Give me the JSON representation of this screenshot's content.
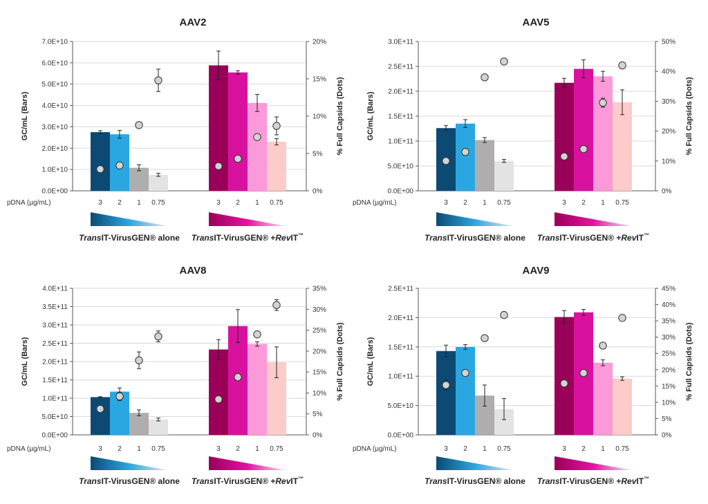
{
  "colors": {
    "bars": [
      "#0c4a74",
      "#2aa7e1",
      "#b0adae",
      "#e3e3e3",
      "#9a0058",
      "#d8129e",
      "#fc99d8",
      "#fdcbc9"
    ],
    "dot_fill": "#d3d3d3",
    "dot_stroke": "#333333",
    "gridline": "#d9d9d9",
    "alone_gradient": [
      "#0c4a74",
      "#2aa7e1",
      "#e6e6e6"
    ],
    "revit_gradient": [
      "#9a0058",
      "#e4129e",
      "#fde0ee"
    ]
  },
  "x_axis_title": "pDNA (µg/mL)",
  "group_labels": {
    "alone": {
      "italic": "Trans",
      "rest": "IT-VirusGEN® alone"
    },
    "revit": {
      "italic": "Trans",
      "mid": "IT-VirusGEN® +",
      "italic2": "Rev",
      "rest": "IT",
      "tm": "™"
    }
  },
  "chart_data": [
    {
      "type": "bar",
      "title": "AAV2",
      "categories": [
        "3",
        "2",
        "1",
        "0.75",
        "3",
        "2",
        "1",
        "0.75"
      ],
      "ylabel": "GC/mL (Bars)",
      "y2label": "% Full Capsids (Dots)",
      "ylim": [
        0,
        70000000000
      ],
      "yticks": [
        0,
        10000000000,
        20000000000,
        30000000000,
        40000000000,
        50000000000,
        60000000000,
        70000000000
      ],
      "ytick_labels": [
        "0.0E+00",
        "1.0E+10",
        "2.0E+10",
        "3.0E+10",
        "4.0E+10",
        "5.0E+10",
        "6.0E+10",
        "7.0E+10"
      ],
      "y2lim": [
        0,
        20
      ],
      "y2ticks": [
        0,
        5,
        10,
        15,
        20
      ],
      "y2tick_labels": [
        "0%",
        "5%",
        "10%",
        "15%",
        "20%"
      ],
      "series": [
        {
          "name": "GC/mL (Bars)",
          "kind": "bar",
          "values": [
            27500000000,
            26500000000,
            10800000000,
            7500000000,
            58800000000,
            55500000000,
            41200000000,
            23000000000
          ],
          "errors": [
            700000000,
            1800000000,
            1400000000,
            700000000,
            6700000000,
            800000000,
            4000000000,
            1500000000
          ]
        },
        {
          "name": "% Full Capsids (Dots)",
          "kind": "scatter",
          "values": [
            2.9,
            3.4,
            8.8,
            14.8,
            3.3,
            4.3,
            7.2,
            8.7
          ],
          "errors": [
            0,
            0,
            0,
            1.5,
            0,
            0,
            0,
            1.2
          ]
        }
      ]
    },
    {
      "type": "bar",
      "title": "AAV5",
      "categories": [
        "3",
        "2",
        "1",
        "0.75",
        "3",
        "2",
        "1",
        "0.75"
      ],
      "ylabel": "GC/mL (Bars)",
      "y2label": "% Full Capsids (Dots)",
      "ylim": [
        0,
        300000000000
      ],
      "yticks": [
        0,
        50000000000,
        100000000000,
        150000000000,
        200000000000,
        250000000000,
        300000000000
      ],
      "ytick_labels": [
        "0.0E+00",
        "5.0E+10",
        "1.0E+11",
        "1.5E+11",
        "2.0E+11",
        "2.5E+11",
        "3.0E+11"
      ],
      "y2lim": [
        0,
        50
      ],
      "y2ticks": [
        0,
        10,
        20,
        30,
        40,
        50
      ],
      "y2tick_labels": [
        "0%",
        "10%",
        "20%",
        "30%",
        "40%",
        "50%"
      ],
      "series": [
        {
          "name": "GC/mL (Bars)",
          "kind": "bar",
          "values": [
            126000000000,
            135000000000,
            102000000000,
            60000000000,
            217000000000,
            245000000000,
            230000000000,
            178000000000
          ],
          "errors": [
            5000000000,
            8000000000,
            5000000000,
            3000000000,
            9000000000,
            18000000000,
            10000000000,
            25000000000
          ]
        },
        {
          "name": "% Full Capsids (Dots)",
          "kind": "scatter",
          "values": [
            10.0,
            13.0,
            38.0,
            43.3,
            11.5,
            14.0,
            29.5,
            42.0
          ],
          "errors": [
            0,
            0,
            0,
            0,
            0,
            0,
            1.5,
            0
          ]
        }
      ]
    },
    {
      "type": "bar",
      "title": "AAV8",
      "categories": [
        "3",
        "2",
        "1",
        "0.75",
        "3",
        "2",
        "1",
        "0.75"
      ],
      "ylabel": "GC/mL (Bars)",
      "y2label": "% Full Capsids (Dots)",
      "ylim": [
        0,
        400000000000
      ],
      "yticks": [
        0,
        50000000000,
        100000000000,
        150000000000,
        200000000000,
        250000000000,
        300000000000,
        350000000000,
        400000000000
      ],
      "ytick_labels": [
        "0.0E+00",
        "5.0E+10",
        "1.0E+11",
        "1.5E+11",
        "2.0E+11",
        "2.5E+11",
        "3.0E+11",
        "3.5E+11",
        "4.0E+11"
      ],
      "y2lim": [
        0,
        35
      ],
      "y2ticks": [
        0,
        5,
        10,
        15,
        20,
        25,
        30,
        35
      ],
      "y2tick_labels": [
        "0%",
        "5%",
        "10%",
        "15%",
        "20%",
        "25%",
        "30%",
        "35%"
      ],
      "series": [
        {
          "name": "GC/mL (Bars)",
          "kind": "bar",
          "values": [
            103000000000,
            118000000000,
            60000000000,
            42000000000,
            233000000000,
            297000000000,
            248000000000,
            198000000000
          ],
          "errors": [
            1000000000,
            10000000000,
            8000000000,
            4000000000,
            27000000000,
            45000000000,
            6000000000,
            42000000000
          ]
        },
        {
          "name": "% Full Capsids (Dots)",
          "kind": "scatter",
          "values": [
            6.2,
            9.2,
            17.8,
            23.5,
            8.5,
            13.8,
            24.0,
            31.0
          ],
          "errors": [
            0,
            1.0,
            2.0,
            1.3,
            0,
            0,
            0,
            1.3
          ]
        }
      ]
    },
    {
      "type": "bar",
      "title": "AAV9",
      "categories": [
        "3",
        "2",
        "1",
        "0.75",
        "3",
        "2",
        "1",
        "0.75"
      ],
      "ylabel": "GC/mL (Bars)",
      "y2label": "% Full Capsids (Dots)",
      "ylim": [
        0,
        250000000000
      ],
      "yticks": [
        0,
        50000000000,
        100000000000,
        150000000000,
        200000000000,
        250000000000
      ],
      "ytick_labels": [
        "0.0E+00",
        "5.0E+10",
        "1.0E+11",
        "1.5E+11",
        "2.0E+11",
        "2.5E+11"
      ],
      "y2lim": [
        0,
        45
      ],
      "y2ticks": [
        0,
        5,
        10,
        15,
        20,
        25,
        30,
        35,
        40,
        45
      ],
      "y2tick_labels": [
        "0%",
        "5%",
        "10%",
        "15%",
        "20%",
        "25%",
        "30%",
        "35%",
        "40%",
        "45%"
      ],
      "series": [
        {
          "name": "GC/mL (Bars)",
          "kind": "bar",
          "values": [
            143000000000,
            150000000000,
            67000000000,
            44000000000,
            201000000000,
            209000000000,
            123000000000,
            96000000000
          ],
          "errors": [
            10000000000,
            4000000000,
            18000000000,
            18000000000,
            11000000000,
            5000000000,
            5000000000,
            3000000000
          ]
        },
        {
          "name": "% Full Capsids (Dots)",
          "kind": "scatter",
          "values": [
            15.3,
            19.0,
            29.7,
            36.8,
            15.8,
            19.0,
            27.4,
            35.9
          ],
          "errors": [
            1.5,
            0,
            0,
            1.0,
            0,
            0,
            0,
            0
          ]
        }
      ]
    }
  ]
}
